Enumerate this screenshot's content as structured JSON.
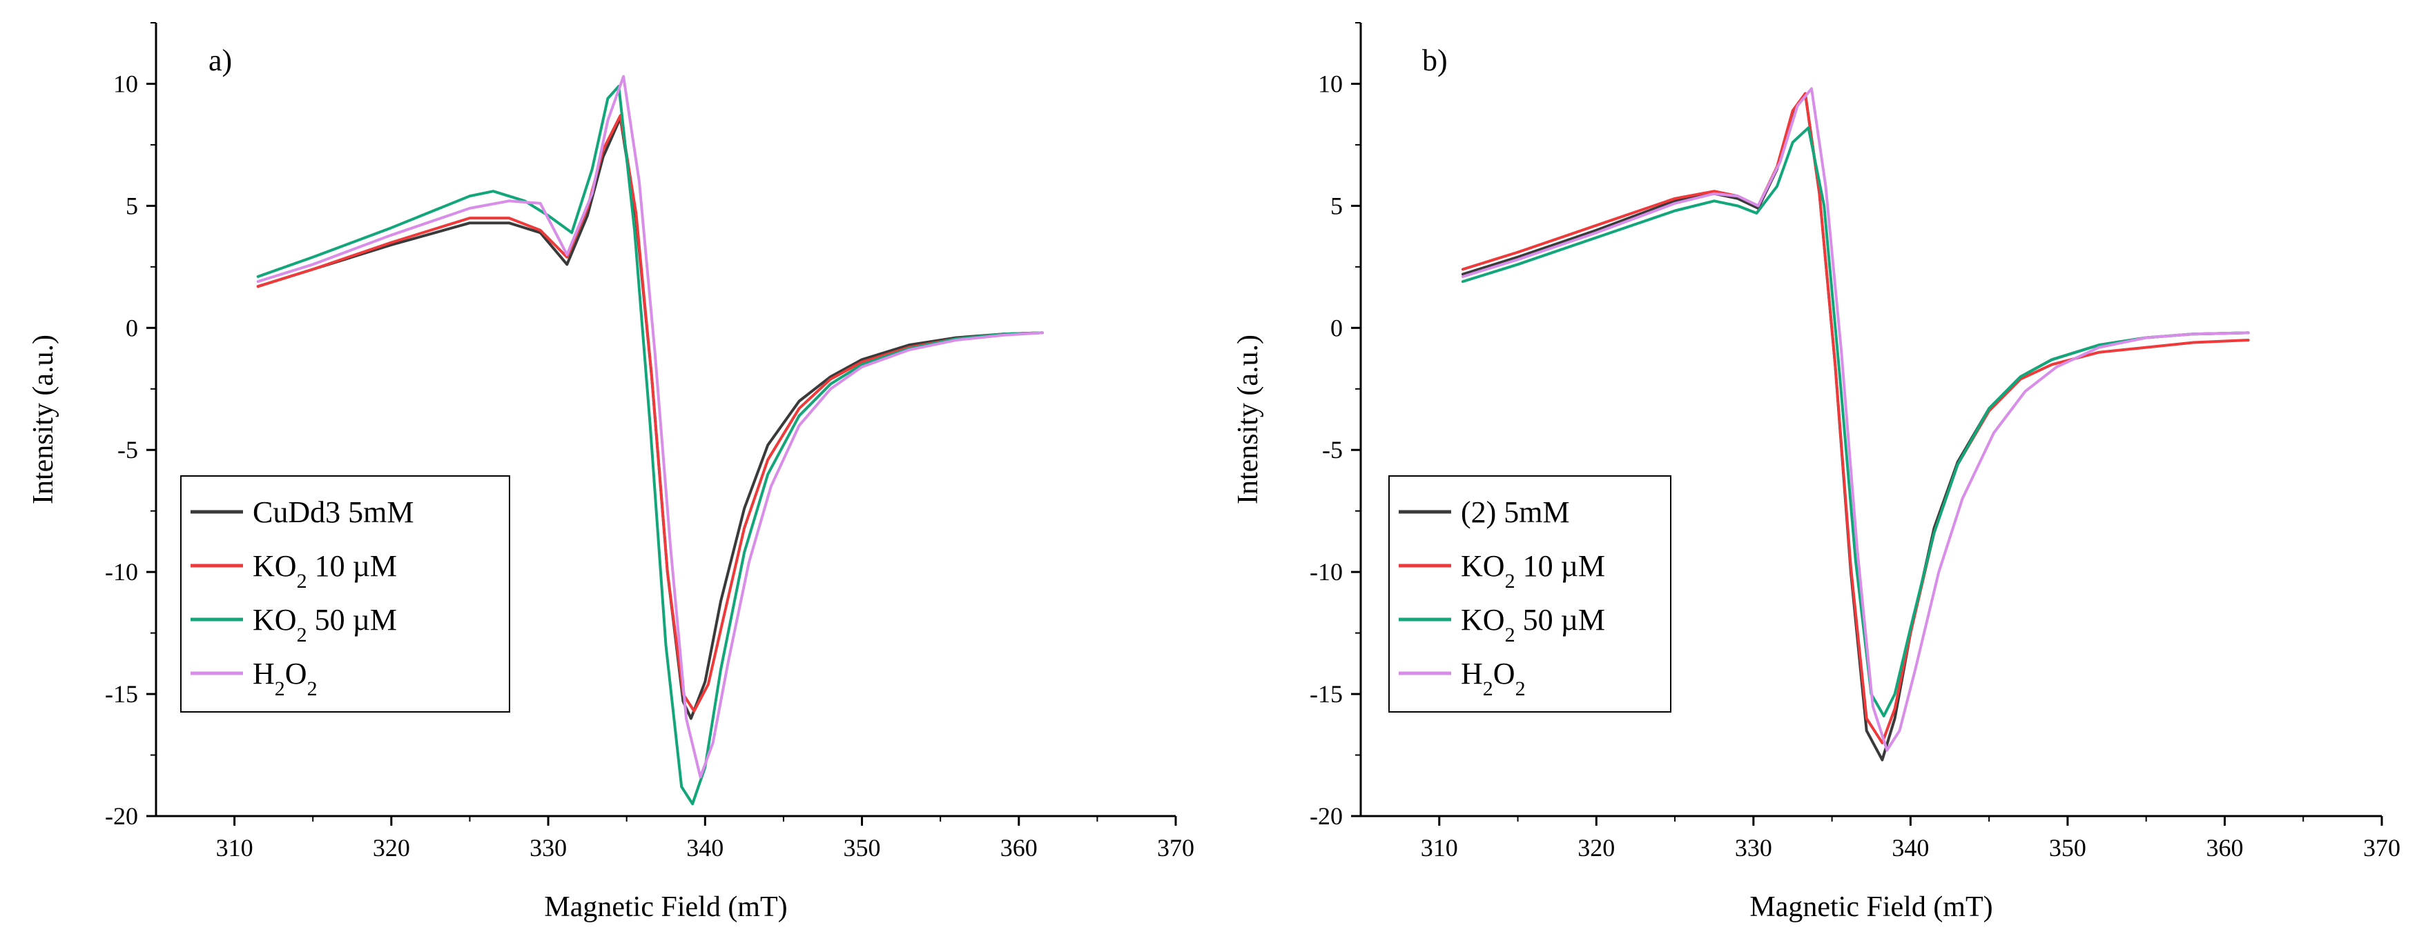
{
  "chart_data": [
    {
      "type": "line",
      "panel_label": "a)",
      "xlabel": "Magnetic Field (mT)",
      "ylabel": "Intensity (a.u.)",
      "xlim": [
        305,
        370
      ],
      "ylim": [
        -20,
        12.5
      ],
      "xticks": [
        "310",
        "320",
        "330",
        "340",
        "350",
        "360",
        "370"
      ],
      "yticks": [
        "10",
        "5",
        "0",
        "-5",
        "-10",
        "-15",
        "-20"
      ],
      "legend_position": "left",
      "series": [
        {
          "name": "CuDd3 5mM",
          "color": "#3a3a3a",
          "x": [
            311.5,
            315,
            320,
            325,
            327.5,
            329.5,
            331.2,
            332.5,
            333.5,
            334.6,
            335.6,
            336.6,
            337.6,
            338.6,
            339.1,
            340,
            341,
            342.5,
            344,
            346,
            348,
            350,
            353,
            356,
            359,
            361.5
          ],
          "y": [
            1.7,
            2.4,
            3.4,
            4.3,
            4.3,
            3.9,
            2.6,
            4.6,
            7.0,
            8.6,
            4.5,
            -2.0,
            -10.0,
            -15.3,
            -16.0,
            -14.5,
            -11.2,
            -7.4,
            -4.8,
            -3.0,
            -2.0,
            -1.3,
            -0.7,
            -0.4,
            -0.25,
            -0.2
          ]
        },
        {
          "name": "KO2 10 µM",
          "sup": "2",
          "suffix": " 10 µM",
          "color": "#ee3a3a",
          "x": [
            311.5,
            315,
            320,
            325,
            327.5,
            329.5,
            331.2,
            332.5,
            333.5,
            334.6,
            335.6,
            336.6,
            337.6,
            338.6,
            339.3,
            340.2,
            341.2,
            342.5,
            344,
            346,
            348,
            350,
            353,
            356,
            359,
            361.5
          ],
          "y": [
            1.7,
            2.4,
            3.5,
            4.5,
            4.5,
            4.0,
            2.9,
            4.9,
            7.3,
            8.7,
            4.7,
            -2.0,
            -10.0,
            -15.0,
            -15.7,
            -14.6,
            -11.8,
            -8.2,
            -5.4,
            -3.3,
            -2.1,
            -1.4,
            -0.8,
            -0.45,
            -0.25,
            -0.2
          ]
        },
        {
          "name": "KO2 50 µM",
          "sup": "2",
          "suffix": " 50 µM",
          "color": "#13a67a",
          "x": [
            311.5,
            315,
            320,
            325,
            326.5,
            328.5,
            330,
            331.5,
            332.8,
            333.8,
            334.5,
            335.5,
            336.5,
            337.5,
            338.5,
            339.2,
            340,
            341,
            342.5,
            344,
            346,
            348,
            350,
            353,
            356,
            359,
            361.5
          ],
          "y": [
            2.1,
            2.9,
            4.1,
            5.4,
            5.6,
            5.2,
            4.6,
            3.9,
            6.5,
            9.4,
            9.9,
            4.0,
            -4.0,
            -13.0,
            -18.8,
            -19.5,
            -18.0,
            -14.0,
            -9.2,
            -6.0,
            -3.6,
            -2.3,
            -1.5,
            -0.85,
            -0.45,
            -0.25,
            -0.2
          ]
        },
        {
          "name": "H2O2",
          "sub": "2",
          "subs": [
            "H",
            "2",
            "O",
            "2"
          ],
          "color": "#d88ee8",
          "x": [
            311.5,
            315,
            320,
            325,
            327.5,
            329.5,
            331.2,
            332.8,
            333.8,
            334.8,
            335.8,
            336.8,
            337.8,
            338.8,
            339.7,
            340.5,
            341.5,
            342.8,
            344.2,
            346,
            348,
            350,
            353,
            356,
            359,
            361.5
          ],
          "y": [
            1.9,
            2.6,
            3.8,
            4.9,
            5.2,
            5.1,
            3.0,
            5.5,
            8.5,
            10.3,
            6.0,
            -1.0,
            -9.0,
            -16.0,
            -18.4,
            -17.0,
            -13.6,
            -9.6,
            -6.5,
            -4.0,
            -2.5,
            -1.6,
            -0.9,
            -0.5,
            -0.3,
            -0.2
          ]
        }
      ],
      "legend": [
        {
          "base": "CuDd3 5mM",
          "sub": "",
          "rest": ""
        },
        {
          "base": "KO",
          "sub": "2",
          "rest": " 10 µM"
        },
        {
          "base": "KO",
          "sub": "2",
          "rest": " 50 µM"
        },
        {
          "base": "H",
          "sub": "2",
          "rest": "O",
          "sub2": "2"
        }
      ]
    },
    {
      "type": "line",
      "panel_label": "b)",
      "xlabel": "Magnetic Field (mT)",
      "ylabel": "Intensity (a.u.)",
      "xlim": [
        305,
        370
      ],
      "ylim": [
        -20,
        12.5
      ],
      "xticks": [
        "310",
        "320",
        "330",
        "340",
        "350",
        "360",
        "370"
      ],
      "yticks": [
        "10",
        "5",
        "0",
        "-5",
        "-10",
        "-15",
        "-20"
      ],
      "legend_position": "left",
      "series": [
        {
          "name": "(2) 5mM",
          "color": "#3a3a3a",
          "x": [
            311.5,
            315,
            320,
            325,
            327.5,
            329,
            330.3,
            331.5,
            332.5,
            333.3,
            334.2,
            335.2,
            336.2,
            337.2,
            338.2,
            339,
            340,
            341.5,
            343,
            345,
            347,
            349,
            352,
            355,
            358,
            361.5
          ],
          "y": [
            2.2,
            2.9,
            4.0,
            5.2,
            5.5,
            5.3,
            4.9,
            6.5,
            8.8,
            9.6,
            5.5,
            -1.5,
            -10.0,
            -16.5,
            -17.7,
            -16.0,
            -12.5,
            -8.2,
            -5.5,
            -3.3,
            -2.0,
            -1.3,
            -0.7,
            -0.4,
            -0.25,
            -0.2
          ]
        },
        {
          "name": "KO2 10 µM",
          "color": "#ee3a3a",
          "x": [
            311.5,
            315,
            320,
            325,
            327.5,
            329,
            330.3,
            331.5,
            332.5,
            333.3,
            334.2,
            335.2,
            336.2,
            337.2,
            338.2,
            339,
            340,
            341.5,
            343,
            345,
            347,
            349,
            352,
            355,
            358,
            361.5
          ],
          "y": [
            2.4,
            3.1,
            4.2,
            5.3,
            5.6,
            5.4,
            5.0,
            6.6,
            8.9,
            9.6,
            5.5,
            -1.5,
            -9.8,
            -16.0,
            -17.0,
            -15.6,
            -12.5,
            -8.4,
            -5.6,
            -3.4,
            -2.1,
            -1.5,
            -1.0,
            -0.8,
            -0.6,
            -0.5
          ]
        },
        {
          "name": "KO2 50 µM",
          "color": "#13a67a",
          "x": [
            311.5,
            315,
            320,
            325,
            327.5,
            329,
            330.2,
            331.5,
            332.5,
            333.5,
            334.5,
            335.5,
            336.5,
            337.5,
            338.3,
            339,
            340,
            341.5,
            343,
            345,
            347,
            349,
            352,
            355,
            358,
            361.5
          ],
          "y": [
            1.9,
            2.6,
            3.7,
            4.8,
            5.2,
            5.0,
            4.7,
            5.8,
            7.6,
            8.2,
            5.0,
            -2.0,
            -9.5,
            -15.0,
            -15.9,
            -15.0,
            -12.3,
            -8.4,
            -5.6,
            -3.3,
            -2.0,
            -1.3,
            -0.7,
            -0.4,
            -0.25,
            -0.2
          ]
        },
        {
          "name": "H2O2",
          "color": "#d88ee8",
          "x": [
            311.5,
            315,
            320,
            325,
            327.5,
            329,
            330.3,
            331.7,
            332.8,
            333.7,
            334.6,
            335.6,
            336.6,
            337.6,
            338.5,
            339.3,
            340.3,
            341.8,
            343.3,
            345.3,
            347.3,
            349.3,
            352,
            355,
            358,
            361.5
          ],
          "y": [
            2.1,
            2.8,
            3.9,
            5.1,
            5.5,
            5.4,
            5.0,
            6.8,
            9.1,
            9.8,
            5.8,
            -1.0,
            -9.0,
            -15.5,
            -17.3,
            -16.5,
            -14.0,
            -10.0,
            -7.0,
            -4.3,
            -2.6,
            -1.6,
            -0.8,
            -0.4,
            -0.25,
            -0.2
          ]
        }
      ],
      "legend": [
        {
          "base": "(2) 5mM",
          "sub": "",
          "rest": ""
        },
        {
          "base": "KO",
          "sub": "2",
          "rest": " 10 µM"
        },
        {
          "base": "KO",
          "sub": "2",
          "rest": " 50 µM"
        },
        {
          "base": "H",
          "sub": "2",
          "rest": "O",
          "sub2": "2"
        }
      ]
    }
  ]
}
